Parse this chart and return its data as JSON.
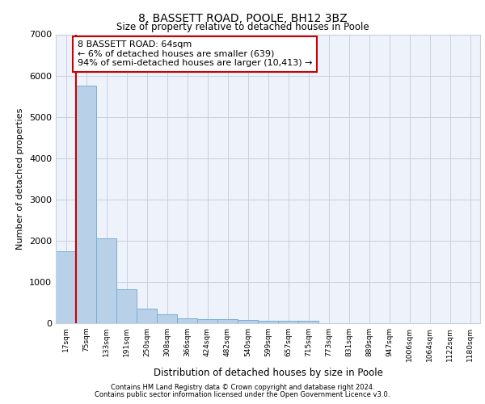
{
  "title": "8, BASSETT ROAD, POOLE, BH12 3BZ",
  "subtitle": "Size of property relative to detached houses in Poole",
  "xlabel": "Distribution of detached houses by size in Poole",
  "ylabel": "Number of detached properties",
  "categories": [
    "17sqm",
    "75sqm",
    "133sqm",
    "191sqm",
    "250sqm",
    "308sqm",
    "366sqm",
    "424sqm",
    "482sqm",
    "540sqm",
    "599sqm",
    "657sqm",
    "715sqm",
    "773sqm",
    "831sqm",
    "889sqm",
    "947sqm",
    "1006sqm",
    "1064sqm",
    "1122sqm",
    "1180sqm"
  ],
  "values": [
    1750,
    5750,
    2060,
    820,
    360,
    210,
    125,
    105,
    95,
    80,
    65,
    55,
    50,
    0,
    0,
    0,
    0,
    0,
    0,
    0,
    0
  ],
  "bar_color": "#b8d0e8",
  "bar_edge_color": "#7aaed4",
  "highlight_line_color": "#cc0000",
  "annotation_text": "8 BASSETT ROAD: 64sqm\n← 6% of detached houses are smaller (639)\n94% of semi-detached houses are larger (10,413) →",
  "annotation_box_color": "#ffffff",
  "annotation_box_edge": "#cc0000",
  "background_color": "#eef2fa",
  "grid_color": "#c8d0e0",
  "ylim": [
    0,
    7000
  ],
  "yticks": [
    0,
    1000,
    2000,
    3000,
    4000,
    5000,
    6000,
    7000
  ],
  "footer_line1": "Contains HM Land Registry data © Crown copyright and database right 2024.",
  "footer_line2": "Contains public sector information licensed under the Open Government Licence v3.0."
}
